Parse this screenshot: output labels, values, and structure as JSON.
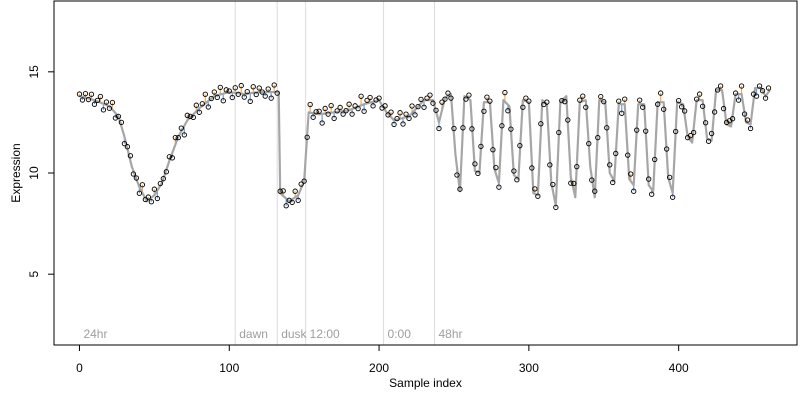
{
  "chart_data": {
    "type": "scatter",
    "xlabel": "Sample index",
    "ylabel": "Expression",
    "xlim": [
      -17,
      479
    ],
    "ylim": [
      1.5,
      18.5
    ],
    "x_ticks": [
      0,
      100,
      200,
      300,
      400
    ],
    "y_ticks": [
      5,
      10,
      15
    ],
    "grid": false,
    "legend": "none",
    "colors": {
      "fitted_line": "#a6a6a6",
      "residual_above": "#f5a94a",
      "residual_below": "#6f9ee0",
      "point_stroke": "#000000",
      "section_line": "#dcdcdc",
      "section_label": "#9e9e9e"
    },
    "sections": [
      {
        "label": "24hr",
        "x": 0
      },
      {
        "label": "dawn",
        "x": 104
      },
      {
        "label": "dusk",
        "x": 132
      },
      {
        "label": "12:00",
        "x": 151
      },
      {
        "label": "0:00",
        "x": 203
      },
      {
        "label": "48hr",
        "x": 237
      }
    ],
    "fitted_knots": [
      [
        0,
        13.8
      ],
      [
        10,
        13.6
      ],
      [
        20,
        13.3
      ],
      [
        26,
        12.8
      ],
      [
        30,
        11.8
      ],
      [
        35,
        10.3
      ],
      [
        40,
        9.3
      ],
      [
        45,
        8.6
      ],
      [
        50,
        8.9
      ],
      [
        55,
        9.5
      ],
      [
        60,
        10.6
      ],
      [
        66,
        11.8
      ],
      [
        72,
        12.6
      ],
      [
        80,
        13.2
      ],
      [
        90,
        13.8
      ],
      [
        100,
        14.0
      ],
      [
        110,
        13.9
      ],
      [
        120,
        14.0
      ],
      [
        130,
        14.0
      ],
      [
        133,
        14.0
      ],
      [
        134,
        9.0
      ],
      [
        140,
        8.6
      ],
      [
        146,
        8.9
      ],
      [
        150,
        9.6
      ],
      [
        153,
        13.0
      ],
      [
        160,
        12.9
      ],
      [
        170,
        13.0
      ],
      [
        180,
        13.1
      ],
      [
        190,
        13.4
      ],
      [
        200,
        13.6
      ],
      [
        205,
        13.0
      ],
      [
        210,
        12.6
      ],
      [
        220,
        12.8
      ],
      [
        225,
        13.2
      ],
      [
        230,
        13.6
      ],
      [
        236,
        13.6
      ],
      [
        240,
        12.5
      ],
      [
        244,
        13.7
      ],
      [
        248,
        13.9
      ],
      [
        251,
        10.9
      ],
      [
        254,
        9.1
      ],
      [
        257,
        13.8
      ],
      [
        261,
        13.6
      ],
      [
        264,
        10.1
      ],
      [
        267,
        10.0
      ],
      [
        270,
        13.5
      ],
      [
        274,
        13.5
      ],
      [
        277,
        10.2
      ],
      [
        280,
        9.5
      ],
      [
        283,
        13.6
      ],
      [
        287,
        13.3
      ],
      [
        290,
        9.9
      ],
      [
        293,
        9.7
      ],
      [
        296,
        13.6
      ],
      [
        300,
        13.5
      ],
      [
        303,
        9.0
      ],
      [
        306,
        8.9
      ],
      [
        309,
        13.6
      ],
      [
        312,
        13.4
      ],
      [
        315,
        9.5
      ],
      [
        318,
        8.4
      ],
      [
        321,
        13.5
      ],
      [
        325,
        13.8
      ],
      [
        328,
        9.8
      ],
      [
        331,
        8.8
      ],
      [
        334,
        13.5
      ],
      [
        338,
        13.6
      ],
      [
        341,
        10.3
      ],
      [
        344,
        8.8
      ],
      [
        347,
        13.6
      ],
      [
        351,
        13.5
      ],
      [
        354,
        10.0
      ],
      [
        357,
        9.6
      ],
      [
        360,
        13.4
      ],
      [
        364,
        13.4
      ],
      [
        367,
        9.7
      ],
      [
        370,
        9.4
      ],
      [
        373,
        13.4
      ],
      [
        377,
        13.4
      ],
      [
        380,
        9.4
      ],
      [
        383,
        9.1
      ],
      [
        386,
        13.5
      ],
      [
        390,
        13.5
      ],
      [
        393,
        9.8
      ],
      [
        396,
        9.0
      ],
      [
        399,
        13.5
      ],
      [
        403,
        13.4
      ],
      [
        406,
        11.8
      ],
      [
        409,
        11.5
      ],
      [
        412,
        13.6
      ],
      [
        416,
        13.6
      ],
      [
        419,
        11.7
      ],
      [
        422,
        11.6
      ],
      [
        425,
        14.1
      ],
      [
        429,
        14.1
      ],
      [
        432,
        12.4
      ],
      [
        435,
        12.3
      ],
      [
        438,
        13.9
      ],
      [
        442,
        13.9
      ],
      [
        445,
        12.5
      ],
      [
        448,
        12.4
      ],
      [
        451,
        14.2
      ],
      [
        455,
        14.2
      ],
      [
        458,
        13.8
      ],
      [
        461,
        14.1
      ]
    ],
    "observed_offsets": [
      0.1,
      -0.15,
      0.2,
      -0.05,
      0.25,
      -0.2,
      0.05,
      0.3,
      -0.3,
      0.15,
      -0.1,
      0.35,
      -0.25,
      0.0,
      0.2,
      -0.35,
      0.1,
      0.25,
      -0.15,
      0.05,
      -0.3,
      0.4,
      -0.05,
      0.15,
      -0.2,
      0.3,
      -0.4,
      0.1,
      0.0,
      -0.1,
      0.2,
      -0.25,
      0.35,
      -0.05,
      0.15,
      -0.45,
      0.25,
      0.05,
      -0.15,
      0.3,
      -0.2,
      0.1,
      0.45,
      -0.3,
      0.0,
      0.2,
      -0.1,
      0.35,
      -0.35,
      0.15,
      0.05,
      -0.25,
      0.25,
      -0.05,
      0.4,
      -0.15,
      0.1,
      -0.4,
      0.3,
      -0.1,
      0.2,
      0.0,
      -0.2,
      0.15,
      -0.3,
      0.35,
      -0.05,
      0.1,
      0.25,
      -0.35,
      0.05,
      -0.15,
      0.3,
      -0.25,
      0.2,
      0.0,
      -0.1,
      0.4,
      -0.2,
      0.1,
      0.15,
      -0.45,
      0.25,
      -0.05,
      0.35,
      -0.3,
      0.05,
      0.2,
      -0.15,
      0.0,
      0.3,
      -0.25,
      0.1,
      -0.1,
      0.45,
      -0.35,
      0.15,
      0.25,
      -0.2,
      0.05
    ]
  }
}
